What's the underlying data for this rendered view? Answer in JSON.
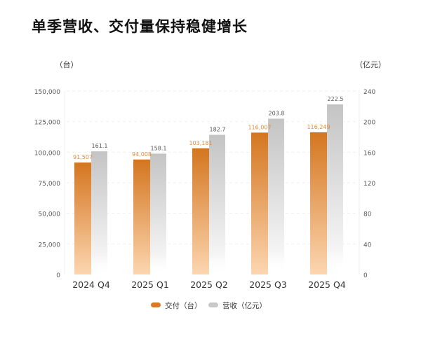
{
  "chart_data": {
    "type": "bar",
    "title": "单季营收、交付量保持稳健增长",
    "categories": [
      "2024 Q4",
      "2025 Q1",
      "2025 Q2",
      "2025 Q3",
      "2025 Q4"
    ],
    "y_left": {
      "unit_label": "（台）",
      "range": [
        0,
        150000
      ],
      "ticks": [
        "0",
        "25,000",
        "50,000",
        "75,000",
        "100,000",
        "125,000",
        "150,000"
      ]
    },
    "y_right": {
      "unit_label": "（亿元）",
      "range": [
        0,
        240
      ],
      "ticks": [
        "0",
        "40",
        "80",
        "120",
        "160",
        "200",
        "240"
      ]
    },
    "series": [
      {
        "name": "交付（台）",
        "axis": "left",
        "color": "#d97b24",
        "values": [
          91507,
          94008,
          103181,
          116007,
          116249
        ],
        "labels": [
          "91,507",
          "94,008",
          "103,181",
          "116,007",
          "116,249"
        ]
      },
      {
        "name": "营收（亿元）",
        "axis": "right",
        "color": "#c8c8c8",
        "values": [
          161.1,
          158.1,
          182.7,
          203.8,
          222.5
        ],
        "labels": [
          "161.1",
          "158.1",
          "182.7",
          "203.8",
          "222.5"
        ]
      }
    ],
    "grid": true,
    "legend": "bottom"
  }
}
